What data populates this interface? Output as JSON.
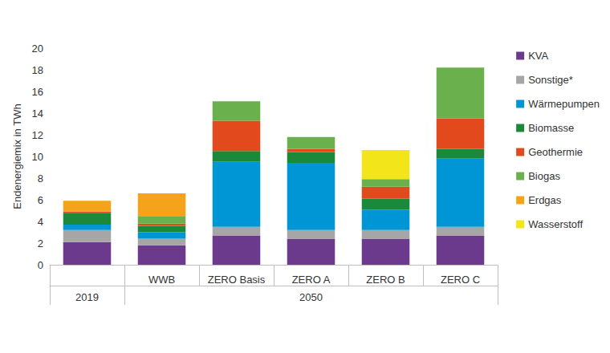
{
  "chart_data": {
    "type": "bar",
    "stacked": true,
    "y_label": "Endenergiemix in TWh",
    "categories": [
      null,
      "WWB",
      "ZERO Basis",
      "ZERO A",
      "ZERO B",
      "ZERO C"
    ],
    "category_groups": [
      {
        "label": "2019",
        "size": 1
      },
      {
        "label": "2050",
        "size": 5
      }
    ],
    "series": [
      {
        "name": "KVA",
        "color": "#6b3a8c",
        "values": [
          2.1,
          1.8,
          2.7,
          2.4,
          2.4,
          2.7
        ]
      },
      {
        "name": "Sonstige*",
        "color": "#a6a6a6",
        "values": [
          1.1,
          0.6,
          0.8,
          0.8,
          0.8,
          0.8
        ]
      },
      {
        "name": "Wärmepumpen",
        "color": "#0096d6",
        "values": [
          0.5,
          0.6,
          6.0,
          6.2,
          1.9,
          6.3
        ]
      },
      {
        "name": "Biomasse",
        "color": "#1a8a3a",
        "values": [
          1.1,
          0.6,
          1.0,
          1.0,
          1.0,
          0.9
        ]
      },
      {
        "name": "Geothermie",
        "color": "#e2491c",
        "values": [
          0.1,
          0.2,
          2.8,
          0.3,
          1.1,
          2.8
        ]
      },
      {
        "name": "Biogas",
        "color": "#6ab04c",
        "values": [
          0,
          0.7,
          1.8,
          1.1,
          0.7,
          4.7
        ]
      },
      {
        "name": "Erdgas",
        "color": "#f5a31a",
        "values": [
          1.0,
          2.1,
          0,
          0,
          0,
          0
        ]
      },
      {
        "name": "Wasserstoff",
        "color": "#f2e51a",
        "values": [
          0,
          0,
          0,
          0,
          2.7,
          0
        ]
      }
    ],
    "ylim": [
      0,
      20
    ],
    "yticks": [
      0,
      2,
      4,
      6,
      8,
      10,
      12,
      14,
      16,
      18,
      20
    ],
    "grid": false,
    "legend": "right"
  }
}
